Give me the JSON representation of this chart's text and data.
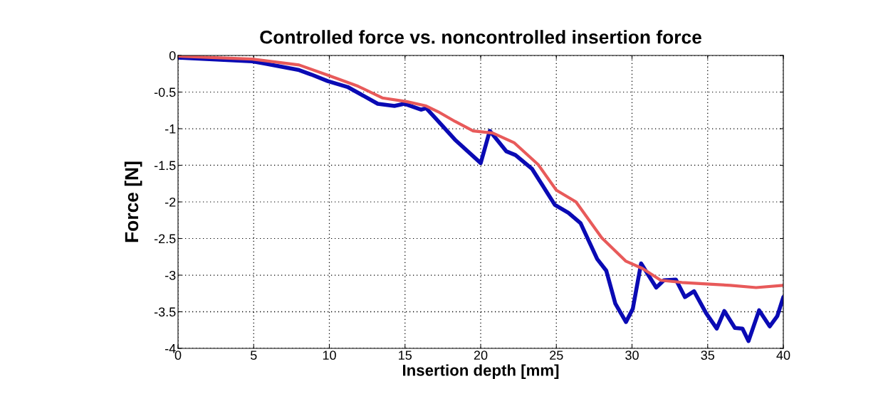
{
  "chart_data": {
    "type": "line",
    "title": "Controlled force vs. noncontrolled insertion force",
    "xlabel": "Insertion depth [mm]",
    "ylabel": "Force [N]",
    "xlim": [
      0,
      40
    ],
    "ylim": [
      -4,
      0
    ],
    "xticks": [
      0,
      5,
      10,
      15,
      20,
      25,
      30,
      35,
      40
    ],
    "yticks": [
      -4,
      -3.5,
      -3,
      -2.5,
      -2,
      -1.5,
      -1,
      -0.5,
      0
    ],
    "grid": true,
    "legend": false,
    "series": [
      {
        "color": "#0a0ab4",
        "x": [
          0,
          4.9,
          5.7,
          8.0,
          8.8,
          9.9,
          11.2,
          13.2,
          14.3,
          14.95,
          16.05,
          16.4,
          17.2,
          18.3,
          20.0,
          20.6,
          21.7,
          22.3,
          23.4,
          24.9,
          25.8,
          26.6,
          27.7,
          28.3,
          28.9,
          29.6,
          30.05,
          30.6,
          31.6,
          32.1,
          32.9,
          33.5,
          34.1,
          34.9,
          35.6,
          36.1,
          36.8,
          37.3,
          37.7,
          38.4,
          39.1,
          39.6,
          40
        ],
        "values": [
          -0.03,
          -0.08,
          -0.11,
          -0.2,
          -0.26,
          -0.35,
          -0.43,
          -0.66,
          -0.69,
          -0.66,
          -0.74,
          -0.72,
          -0.9,
          -1.15,
          -1.47,
          -1.03,
          -1.31,
          -1.36,
          -1.55,
          -2.04,
          -2.15,
          -2.29,
          -2.78,
          -2.94,
          -3.39,
          -3.64,
          -3.46,
          -2.84,
          -3.17,
          -3.07,
          -3.06,
          -3.3,
          -3.22,
          -3.52,
          -3.73,
          -3.49,
          -3.72,
          -3.73,
          -3.9,
          -3.48,
          -3.7,
          -3.56,
          -3.3
        ]
      },
      {
        "color": "#e85a5a",
        "x": [
          0,
          4.9,
          8.0,
          9.9,
          11.9,
          13.5,
          15.1,
          16.4,
          17.2,
          18.3,
          19.5,
          20.8,
          22.2,
          23.8,
          25.0,
          26.3,
          28.0,
          29.6,
          30.7,
          31.9,
          33.3,
          34.9,
          36.5,
          38.2,
          40
        ],
        "values": [
          -0.01,
          -0.05,
          -0.13,
          -0.27,
          -0.42,
          -0.58,
          -0.63,
          -0.69,
          -0.77,
          -0.9,
          -1.03,
          -1.06,
          -1.19,
          -1.49,
          -1.84,
          -2.0,
          -2.49,
          -2.81,
          -2.91,
          -3.07,
          -3.1,
          -3.12,
          -3.14,
          -3.17,
          -3.14
        ]
      }
    ]
  }
}
